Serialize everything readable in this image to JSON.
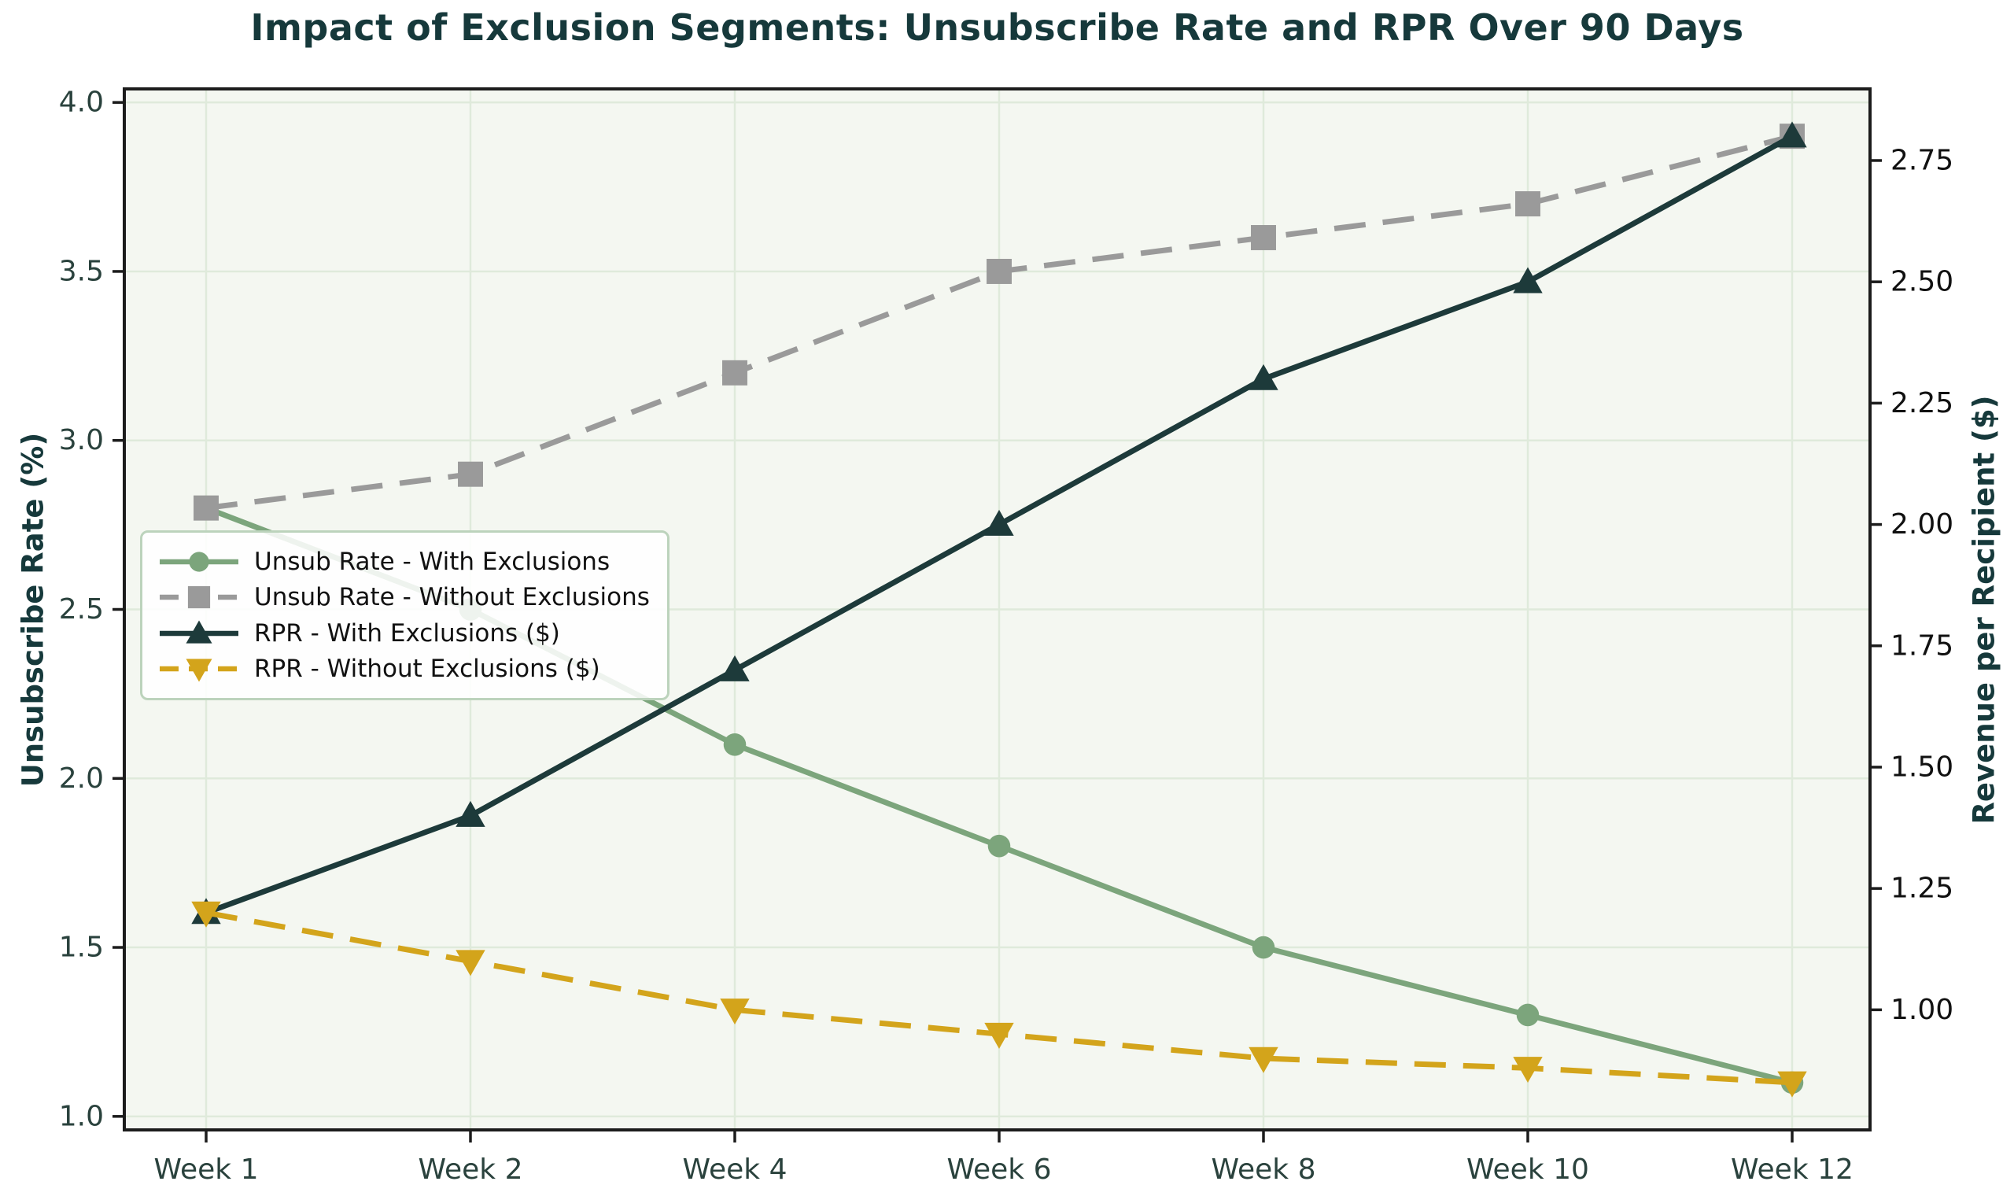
{
  "chart_data": {
    "type": "line",
    "title": "Impact of Exclusion Segments: Unsubscribe Rate and RPR Over 90 Days",
    "categories": [
      "Week 1",
      "Week 2",
      "Week 4",
      "Week 6",
      "Week 8",
      "Week 10",
      "Week 12"
    ],
    "series": [
      {
        "name": "Unsub Rate - With Exclusions",
        "axis": "left",
        "values": [
          2.8,
          2.5,
          2.1,
          1.8,
          1.5,
          1.3,
          1.1
        ],
        "color": "#7CA57C",
        "marker": "circle",
        "linestyle": "solid"
      },
      {
        "name": "Unsub Rate - Without Exclusions",
        "axis": "left",
        "values": [
          2.8,
          2.9,
          3.2,
          3.5,
          3.6,
          3.7,
          3.9
        ],
        "color": "#9A9A9A",
        "marker": "square",
        "linestyle": "dashed"
      },
      {
        "name": "RPR - With Exclusions ($)",
        "axis": "right",
        "values": [
          1.2,
          1.4,
          1.7,
          2.0,
          2.3,
          2.5,
          2.8
        ],
        "color": "#1D3A3A",
        "marker": "triangle-up",
        "linestyle": "solid"
      },
      {
        "name": "RPR - Without Exclusions ($)",
        "axis": "right",
        "values": [
          1.2,
          1.1,
          1.0,
          0.95,
          0.9,
          0.88,
          0.85
        ],
        "color": "#D3A41B",
        "marker": "triangle-down",
        "linestyle": "dashed"
      }
    ],
    "left_axis": {
      "label": "Unsubscribe Rate (%)",
      "tick_values": [
        4.0,
        3.5,
        3.0,
        2.5,
        2.0,
        1.5,
        1.0
      ],
      "tick_labels": [
        "4.0",
        "3.5",
        "3.0",
        "2.5",
        "2.0",
        "1.5",
        "1.0"
      ],
      "range": [
        0.96,
        4.04
      ]
    },
    "right_axis": {
      "label": "Revenue per Recipient ($)",
      "tick_values": [
        2.75,
        2.5,
        2.25,
        2.0,
        1.75,
        1.5,
        1.25,
        1.0
      ],
      "tick_labels": [
        "2.75",
        "2.50",
        "2.25",
        "2.00",
        "1.75",
        "1.50",
        "1.25",
        "1.00"
      ],
      "range": [
        0.7525,
        2.8975
      ]
    },
    "x_axis": {
      "tick_labels": [
        "Week 1",
        "Week 2",
        "Week 4",
        "Week 6",
        "Week 8",
        "Week 10",
        "Week 12"
      ]
    },
    "grid": true,
    "legend_position": "upper-left"
  },
  "style": {
    "title_color": "#16393B",
    "tick_color": "#2A423D",
    "right_tick_color": "#111111",
    "axis_label_color": "#16393B",
    "spine_color": "#1C1C1C",
    "grid_color": "#DFEADB",
    "plot_bg": "#F4F7F1",
    "figure_bg": "#FFFFFF",
    "legend_border": "#BCD3BC",
    "legend_bg": "rgba(255,255,255,0.87)",
    "legend_text": "#111111"
  }
}
